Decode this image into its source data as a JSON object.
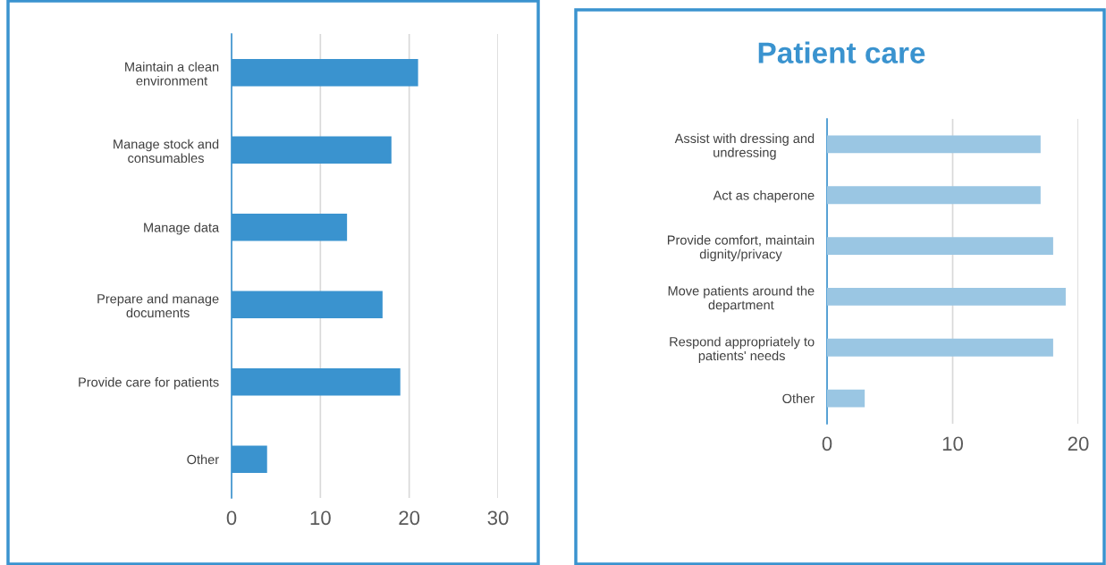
{
  "chart_data": [
    {
      "type": "bar",
      "orientation": "horizontal",
      "categories": [
        "Maintain a clean\nenvironment",
        "Manage stock and\nconsumables",
        "Manage data",
        "Prepare and manage\ndocuments",
        "Provide care for patients",
        "Other"
      ],
      "values": [
        21,
        18,
        13,
        17,
        19,
        4
      ],
      "color": "#3a93cf",
      "xlim": [
        0,
        30
      ],
      "xticks": [
        0,
        10,
        20,
        30
      ],
      "grid": "x"
    },
    {
      "type": "bar",
      "orientation": "horizontal",
      "title": "Patient care",
      "categories": [
        "Assist with dressing and\nundressing",
        "Act as chaperone",
        "Provide comfort, maintain\ndignity/privacy",
        "Move patients around the\ndepartment",
        "Respond appropriately to\npatients' needs",
        "Other"
      ],
      "values": [
        17,
        17,
        18,
        19,
        18,
        3
      ],
      "color": "#9ac6e3",
      "xlim": [
        0,
        20
      ],
      "xticks": [
        0,
        10,
        20
      ],
      "grid": "x"
    }
  ]
}
